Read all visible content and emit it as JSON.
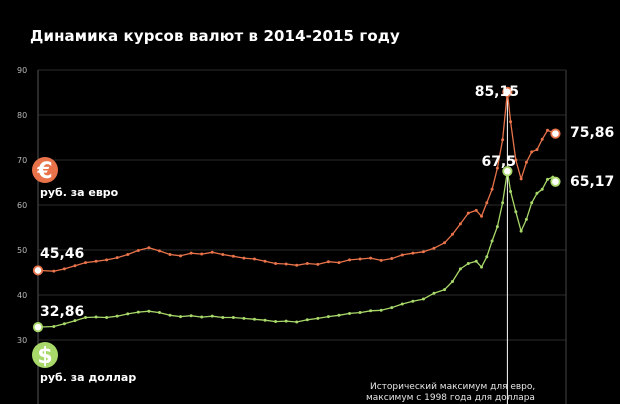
{
  "title": "Динамика курсов валют в 2014-2015 году",
  "colors": {
    "background": "#000000",
    "euro": "#e8734a",
    "dollar": "#a8d86a",
    "grid": "#3a3a3a",
    "marker_fill": "#ffffff"
  },
  "legend": {
    "euro": {
      "icon": "euro-icon",
      "symbol": "€",
      "label": "руб. за евро"
    },
    "dollar": {
      "icon": "dollar-icon",
      "symbol": "$",
      "label": "руб. за доллар"
    }
  },
  "annotation": {
    "line1": "Исторический максимум для евро,",
    "line2": "максимум с 1998 года для доллара"
  },
  "chart_data": {
    "type": "line",
    "title": "Динамика курсов валют в 2014-2015 году",
    "xlabel": "",
    "ylabel": "",
    "ylim": [
      30,
      90
    ],
    "yticks": [
      30,
      40,
      50,
      60,
      70,
      80,
      90
    ],
    "ytick_labels": [
      "30",
      "40",
      "50",
      "60",
      "70",
      "80",
      "90"
    ],
    "grid": true,
    "x_range": [
      0,
      100
    ],
    "peak_x": 88.9,
    "series": [
      {
        "name": "руб. за евро",
        "color": "#e8734a",
        "start_label": "45,46",
        "peak_label": "85,15",
        "end_label": "75,86",
        "points": [
          [
            0,
            45.46
          ],
          [
            3,
            45.3
          ],
          [
            5,
            45.8
          ],
          [
            7,
            46.5
          ],
          [
            9,
            47.2
          ],
          [
            11,
            47.5
          ],
          [
            13,
            47.8
          ],
          [
            15,
            48.3
          ],
          [
            17,
            49.0
          ],
          [
            19,
            49.9
          ],
          [
            21,
            50.5
          ],
          [
            23,
            49.8
          ],
          [
            25,
            49.0
          ],
          [
            27,
            48.7
          ],
          [
            29,
            49.3
          ],
          [
            31,
            49.1
          ],
          [
            33,
            49.5
          ],
          [
            35,
            49.0
          ],
          [
            37,
            48.6
          ],
          [
            39,
            48.2
          ],
          [
            41,
            48.0
          ],
          [
            43,
            47.5
          ],
          [
            45,
            47.0
          ],
          [
            47,
            46.9
          ],
          [
            49,
            46.6
          ],
          [
            51,
            47.0
          ],
          [
            53,
            46.8
          ],
          [
            55,
            47.4
          ],
          [
            57,
            47.2
          ],
          [
            59,
            47.8
          ],
          [
            61,
            48.0
          ],
          [
            63,
            48.2
          ],
          [
            65,
            47.7
          ],
          [
            67,
            48.1
          ],
          [
            69,
            48.9
          ],
          [
            71,
            49.3
          ],
          [
            73,
            49.6
          ],
          [
            75,
            50.4
          ],
          [
            77,
            51.6
          ],
          [
            78.5,
            53.5
          ],
          [
            80,
            55.8
          ],
          [
            81.5,
            58.2
          ],
          [
            83,
            58.8
          ],
          [
            84,
            57.5
          ],
          [
            85,
            60.5
          ],
          [
            86,
            63.5
          ],
          [
            87,
            68.2
          ],
          [
            88,
            74.5
          ],
          [
            88.9,
            85.15
          ],
          [
            89.5,
            78.5
          ],
          [
            90.5,
            70.0
          ],
          [
            91.5,
            65.8
          ],
          [
            92.5,
            69.5
          ],
          [
            93.5,
            71.8
          ],
          [
            94.5,
            72.3
          ],
          [
            95.5,
            74.6
          ],
          [
            96.5,
            76.6
          ],
          [
            97.5,
            76.1
          ],
          [
            98,
            75.86
          ]
        ]
      },
      {
        "name": "руб. за доллар",
        "color": "#a8d86a",
        "start_label": "32,86",
        "peak_label": "67,5",
        "end_label": "65,17",
        "points": [
          [
            0,
            32.86
          ],
          [
            3,
            33.0
          ],
          [
            5,
            33.6
          ],
          [
            7,
            34.3
          ],
          [
            9,
            35.0
          ],
          [
            11,
            35.1
          ],
          [
            13,
            35.0
          ],
          [
            15,
            35.3
          ],
          [
            17,
            35.8
          ],
          [
            19,
            36.2
          ],
          [
            21,
            36.4
          ],
          [
            23,
            36.1
          ],
          [
            25,
            35.5
          ],
          [
            27,
            35.2
          ],
          [
            29,
            35.4
          ],
          [
            31,
            35.1
          ],
          [
            33,
            35.3
          ],
          [
            35,
            35.0
          ],
          [
            37,
            35.0
          ],
          [
            39,
            34.8
          ],
          [
            41,
            34.6
          ],
          [
            43,
            34.4
          ],
          [
            45,
            34.1
          ],
          [
            47,
            34.2
          ],
          [
            49,
            34.0
          ],
          [
            51,
            34.5
          ],
          [
            53,
            34.8
          ],
          [
            55,
            35.2
          ],
          [
            57,
            35.5
          ],
          [
            59,
            35.9
          ],
          [
            61,
            36.1
          ],
          [
            63,
            36.5
          ],
          [
            65,
            36.6
          ],
          [
            67,
            37.2
          ],
          [
            69,
            38.0
          ],
          [
            71,
            38.6
          ],
          [
            73,
            39.1
          ],
          [
            75,
            40.4
          ],
          [
            77,
            41.2
          ],
          [
            78.5,
            43.0
          ],
          [
            80,
            45.8
          ],
          [
            81.5,
            47.0
          ],
          [
            83,
            47.5
          ],
          [
            84,
            46.2
          ],
          [
            85,
            48.5
          ],
          [
            86,
            52.0
          ],
          [
            87,
            55.2
          ],
          [
            88,
            60.5
          ],
          [
            88.9,
            67.5
          ],
          [
            89.5,
            63.0
          ],
          [
            90.5,
            58.5
          ],
          [
            91.5,
            54.2
          ],
          [
            92.5,
            56.8
          ],
          [
            93.5,
            60.5
          ],
          [
            94.5,
            62.6
          ],
          [
            95.5,
            63.5
          ],
          [
            96.5,
            65.7
          ],
          [
            97.5,
            66.2
          ],
          [
            98,
            65.17
          ]
        ]
      }
    ]
  }
}
